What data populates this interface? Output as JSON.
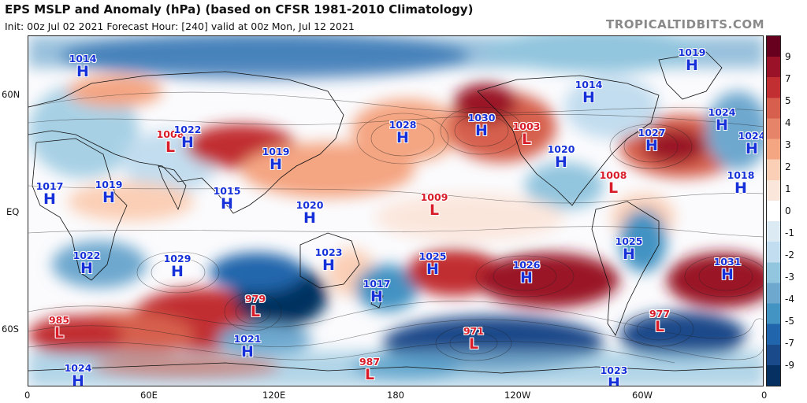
{
  "header": {
    "title": "EPS MSLP and Anomaly (hPa) (based on CFSR 1981-2010 Climatology)",
    "subtitle": "Init: 00z Jul 02 2021   Forecast Hour: [240]   valid at 00z Mon, Jul 12 2021",
    "brand": "TROPICALTIDBITS.COM"
  },
  "axes": {
    "lat_labels": [
      "60N",
      "EQ",
      "60S"
    ],
    "lon_labels": [
      "0",
      "60E",
      "120E",
      "180",
      "120W",
      "60W",
      "0"
    ]
  },
  "colorbar": {
    "ticks": [
      "9",
      "7",
      "5",
      "4",
      "3",
      "2",
      "1",
      "0",
      "-1",
      "-2",
      "-3",
      "-4",
      "-5",
      "-7",
      "-9"
    ],
    "colors": [
      "#67001f",
      "#9a1228",
      "#c12f32",
      "#d6604d",
      "#e58468",
      "#f4a582",
      "#fbcfb6",
      "#fbe6dc",
      "#ffffff",
      "#dceaf3",
      "#c2ddef",
      "#92c5de",
      "#6ea8cf",
      "#4393c3",
      "#2166ac",
      "#1a4a8a",
      "#053061"
    ]
  },
  "map": {
    "colors": {
      "high": "#1530d8",
      "low": "#d81c2a"
    },
    "systems": [
      {
        "type": "H",
        "pressure": "1014"
      },
      {
        "type": "L",
        "pressure": "1008"
      },
      {
        "type": "H",
        "pressure": "1022"
      },
      {
        "type": "H",
        "pressure": "1019"
      },
      {
        "type": "H",
        "pressure": "1017"
      },
      {
        "type": "H",
        "pressure": "1019"
      },
      {
        "type": "H",
        "pressure": "1015"
      },
      {
        "type": "H",
        "pressure": "1020"
      },
      {
        "type": "H",
        "pressure": "1028"
      },
      {
        "type": "H",
        "pressure": "1030"
      },
      {
        "type": "L",
        "pressure": "1003"
      },
      {
        "type": "H",
        "pressure": "1020"
      },
      {
        "type": "H",
        "pressure": "1014"
      },
      {
        "type": "H",
        "pressure": "1019"
      },
      {
        "type": "H",
        "pressure": "1024"
      },
      {
        "type": "H",
        "pressure": "1027"
      },
      {
        "type": "H",
        "pressure": "1024"
      },
      {
        "type": "H",
        "pressure": "1018"
      },
      {
        "type": "L",
        "pressure": "1008"
      },
      {
        "type": "L",
        "pressure": "1009"
      },
      {
        "type": "H",
        "pressure": "1022"
      },
      {
        "type": "H",
        "pressure": "1029"
      },
      {
        "type": "H",
        "pressure": "1023"
      },
      {
        "type": "H",
        "pressure": "1025"
      },
      {
        "type": "H",
        "pressure": "1026"
      },
      {
        "type": "H",
        "pressure": "1025"
      },
      {
        "type": "H",
        "pressure": "1031"
      },
      {
        "type": "L",
        "pressure": "979"
      },
      {
        "type": "H",
        "pressure": "1017"
      },
      {
        "type": "L",
        "pressure": "985"
      },
      {
        "type": "L",
        "pressure": "971"
      },
      {
        "type": "L",
        "pressure": "977"
      },
      {
        "type": "H",
        "pressure": "1021"
      },
      {
        "type": "H",
        "pressure": "1024"
      },
      {
        "type": "L",
        "pressure": "987"
      },
      {
        "type": "H",
        "pressure": "1023"
      }
    ]
  }
}
